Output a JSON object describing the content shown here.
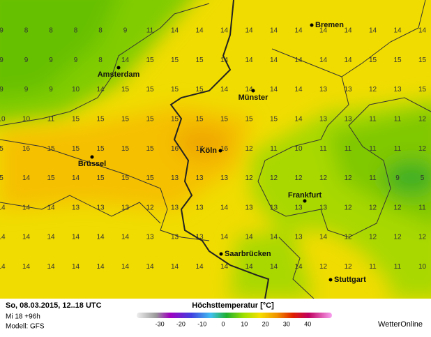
{
  "map": {
    "cities": [
      "Bremen",
      "Amsterdam",
      "Münster",
      "Köln",
      "Brüssel",
      "Frankfurt",
      "Saarbrücken",
      "Stuttgart"
    ],
    "grid": [
      [
        9,
        8,
        8,
        8,
        8,
        9,
        11,
        14,
        14,
        14,
        14,
        14,
        14,
        14,
        14,
        14,
        14,
        14
      ],
      [
        9,
        9,
        9,
        9,
        8,
        14,
        15,
        15,
        15,
        14,
        14,
        14,
        14,
        14,
        14,
        15,
        15,
        15
      ],
      [
        9,
        9,
        9,
        10,
        14,
        15,
        15,
        15,
        15,
        14,
        14,
        14,
        14,
        13,
        13,
        12,
        13,
        15
      ],
      [
        10,
        10,
        11,
        15,
        15,
        15,
        15,
        15,
        15,
        15,
        15,
        15,
        14,
        13,
        13,
        11,
        11,
        12
      ],
      [
        5,
        16,
        15,
        15,
        15,
        15,
        15,
        16,
        17,
        16,
        12,
        11,
        10,
        11,
        11,
        11,
        11,
        12
      ],
      [
        5,
        14,
        15,
        14,
        15,
        15,
        15,
        13,
        13,
        13,
        12,
        12,
        12,
        12,
        12,
        11,
        9,
        5
      ],
      [
        14,
        14,
        14,
        13,
        13,
        13,
        12,
        13,
        13,
        14,
        13,
        13,
        13,
        13,
        12,
        12,
        12,
        11
      ],
      [
        14,
        14,
        14,
        14,
        14,
        14,
        13,
        13,
        13,
        14,
        14,
        14,
        13,
        14,
        12,
        12,
        12,
        12
      ],
      [
        14,
        14,
        14,
        14,
        14,
        14,
        14,
        14,
        14,
        14,
        14,
        14,
        14,
        12,
        12,
        11,
        11,
        10
      ]
    ]
  },
  "footer": {
    "date": "So, 08.03.2015, 12..18 UTC",
    "run": "Mi 18 +96h",
    "model": "Modell: GFS",
    "legend_title": "Höchsttemperatur [°C]",
    "legend_ticks": [
      -30,
      -20,
      -10,
      0,
      10,
      20,
      30,
      40
    ],
    "brand": "WetterOnline"
  }
}
